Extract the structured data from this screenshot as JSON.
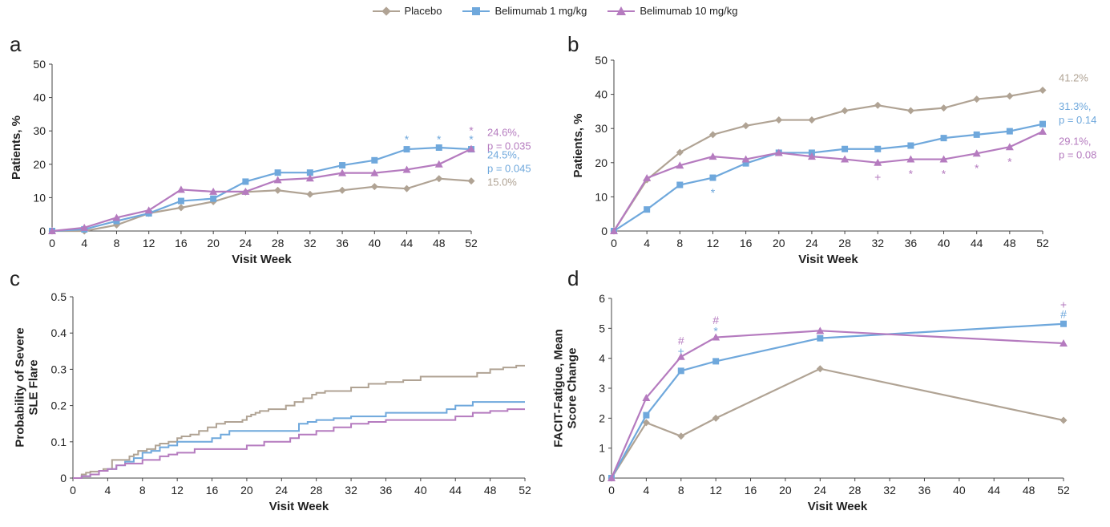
{
  "legend": [
    {
      "name": "Placebo",
      "color": "#b0a394",
      "marker": "diamond"
    },
    {
      "name": "Belimumab 1 mg/kg",
      "color": "#6fa8dc",
      "marker": "square"
    },
    {
      "name": "Belimumab 10 mg/kg",
      "color": "#b57bbf",
      "marker": "triangle"
    }
  ],
  "chart_data": [
    {
      "panel": "a",
      "type": "line",
      "title": "",
      "xlabel": "Visit Week",
      "ylabel": "Patients, %",
      "xlim": [
        0,
        52
      ],
      "ylim": [
        0,
        50
      ],
      "xticks": [
        0,
        4,
        8,
        12,
        16,
        20,
        24,
        28,
        32,
        36,
        40,
        44,
        48,
        52
      ],
      "yticks": [
        0,
        10,
        20,
        30,
        40,
        50
      ],
      "grid": false,
      "series": [
        {
          "name": "Placebo",
          "color": "#b0a394",
          "marker": "diamond",
          "x": [
            0,
            4,
            8,
            12,
            16,
            20,
            24,
            28,
            32,
            36,
            40,
            44,
            48,
            52
          ],
          "y": [
            0,
            0,
            1.8,
            5.3,
            7,
            8.8,
            11.7,
            12.2,
            11,
            12.2,
            13.3,
            12.7,
            15.7,
            15
          ]
        },
        {
          "name": "Belimumab 1 mg/kg",
          "color": "#6fa8dc",
          "marker": "square",
          "x": [
            0,
            4,
            8,
            12,
            16,
            20,
            24,
            28,
            32,
            36,
            40,
            44,
            48,
            52
          ],
          "y": [
            0,
            0.5,
            3,
            5.3,
            9,
            9.7,
            14.8,
            17.5,
            17.5,
            19.7,
            21.2,
            24.5,
            25,
            24.5
          ]
        },
        {
          "name": "Belimumab 10 mg/kg",
          "color": "#b57bbf",
          "marker": "triangle",
          "x": [
            0,
            4,
            8,
            12,
            16,
            20,
            24,
            28,
            32,
            36,
            40,
            44,
            48,
            52
          ],
          "y": [
            0,
            1,
            4,
            6.2,
            12.4,
            11.8,
            11.8,
            15.3,
            15.8,
            17.4,
            17.4,
            18.4,
            20,
            24.6
          ]
        }
      ],
      "end_labels": [
        {
          "lines": [
            "24.6%,",
            "p = 0.035"
          ],
          "color": "#b57bbf",
          "y": 28.5
        },
        {
          "lines": [
            "24.5%,",
            "p = 0.045"
          ],
          "color": "#6fa8dc",
          "y": 21.7
        },
        {
          "lines": [
            "15.0%"
          ],
          "color": "#b0a394",
          "y": 13.6
        }
      ],
      "annotations": [
        {
          "x": 44,
          "y": 27.5,
          "text": "*",
          "color": "#6fa8dc"
        },
        {
          "x": 48,
          "y": 27.5,
          "text": "*",
          "color": "#6fa8dc"
        },
        {
          "x": 52,
          "y": 30.2,
          "text": "*",
          "color": "#b57bbf"
        },
        {
          "x": 52,
          "y": 27.5,
          "text": "*",
          "color": "#6fa8dc"
        }
      ]
    },
    {
      "panel": "b",
      "type": "line",
      "title": "",
      "xlabel": "Visit Week",
      "ylabel": "Patients, %",
      "xlim": [
        0,
        52
      ],
      "ylim": [
        0,
        50
      ],
      "xticks": [
        0,
        4,
        8,
        12,
        16,
        20,
        24,
        28,
        32,
        36,
        40,
        44,
        48,
        52
      ],
      "yticks": [
        0,
        10,
        20,
        30,
        40,
        50
      ],
      "grid": false,
      "series": [
        {
          "name": "Placebo",
          "color": "#b0a394",
          "marker": "diamond",
          "x": [
            0,
            4,
            8,
            12,
            16,
            20,
            24,
            28,
            32,
            36,
            40,
            44,
            48,
            52
          ],
          "y": [
            0,
            15,
            23,
            28.2,
            30.8,
            32.5,
            32.5,
            35.2,
            36.8,
            35.2,
            36,
            38.6,
            39.5,
            41.2
          ]
        },
        {
          "name": "Belimumab 1 mg/kg",
          "color": "#6fa8dc",
          "marker": "square",
          "x": [
            0,
            4,
            8,
            12,
            16,
            20,
            24,
            28,
            32,
            36,
            40,
            44,
            48,
            52
          ],
          "y": [
            0,
            6.3,
            13.5,
            15.6,
            19.8,
            22.9,
            22.9,
            24,
            24,
            25,
            27.2,
            28.2,
            29.2,
            31.3
          ]
        },
        {
          "name": "Belimumab 10 mg/kg",
          "color": "#b57bbf",
          "marker": "triangle",
          "x": [
            0,
            4,
            8,
            12,
            16,
            20,
            24,
            28,
            32,
            36,
            40,
            44,
            48,
            52
          ],
          "y": [
            0,
            15.5,
            19.2,
            21.8,
            21,
            22.9,
            21.8,
            21,
            20,
            21,
            21,
            22.7,
            24.6,
            29.1
          ]
        }
      ],
      "end_labels": [
        {
          "lines": [
            "41.2%"
          ],
          "color": "#b0a394",
          "y": 43.8
        },
        {
          "lines": [
            "31.3%,",
            "p = 0.14"
          ],
          "color": "#6fa8dc",
          "y": 35.5
        },
        {
          "lines": [
            "29.1%,",
            "p = 0.08"
          ],
          "color": "#b57bbf",
          "y": 25.2
        }
      ],
      "annotations": [
        {
          "x": 12,
          "y": 11.3,
          "text": "*",
          "color": "#6fa8dc"
        },
        {
          "x": 32,
          "y": 15.8,
          "text": "+",
          "color": "#b57bbf"
        },
        {
          "x": 36,
          "y": 16.8,
          "text": "*",
          "color": "#b57bbf"
        },
        {
          "x": 40,
          "y": 16.8,
          "text": "*",
          "color": "#b57bbf"
        },
        {
          "x": 44,
          "y": 18.4,
          "text": "*",
          "color": "#b57bbf"
        },
        {
          "x": 48,
          "y": 20.3,
          "text": "*",
          "color": "#b57bbf"
        }
      ]
    },
    {
      "panel": "c",
      "type": "line",
      "step": true,
      "title": "",
      "xlabel": "Visit Week",
      "ylabel": "Probability of Severe SLE Flare",
      "ylabel_lines": [
        "Probability of Severe",
        "SLE Flare"
      ],
      "xlim": [
        0,
        52
      ],
      "ylim": [
        0,
        0.5
      ],
      "xticks": [
        0,
        4,
        8,
        12,
        16,
        20,
        24,
        28,
        32,
        36,
        40,
        44,
        48,
        52
      ],
      "yticks": [
        0,
        0.1,
        0.2,
        0.3,
        0.4,
        0.5
      ],
      "grid": false,
      "series": [
        {
          "name": "Placebo",
          "color": "#b0a394",
          "x": [
            0,
            1,
            1.5,
            2,
            3,
            3.5,
            4.5,
            5.5,
            6.5,
            7,
            7.5,
            8.5,
            9.5,
            10,
            11,
            12,
            12.5,
            13.5,
            14.5,
            15.5,
            16.5,
            17.5,
            19.5,
            20,
            20.5,
            21,
            21.5,
            22.5,
            24.5,
            25.5,
            26.5,
            27.5,
            28,
            29,
            30,
            32,
            34,
            36,
            38,
            40,
            43,
            45,
            46.5,
            48,
            49.5,
            51,
            52
          ],
          "y": [
            0,
            0.01,
            0.015,
            0.018,
            0.02,
            0.025,
            0.05,
            0.05,
            0.06,
            0.065,
            0.075,
            0.08,
            0.09,
            0.095,
            0.1,
            0.11,
            0.115,
            0.12,
            0.13,
            0.14,
            0.15,
            0.155,
            0.16,
            0.17,
            0.175,
            0.18,
            0.185,
            0.19,
            0.2,
            0.21,
            0.22,
            0.23,
            0.235,
            0.24,
            0.24,
            0.25,
            0.26,
            0.265,
            0.27,
            0.28,
            0.28,
            0.28,
            0.29,
            0.3,
            0.305,
            0.31,
            0.31
          ]
        },
        {
          "name": "Belimumab 1 mg/kg",
          "color": "#6fa8dc",
          "x": [
            0,
            1,
            2,
            3,
            4,
            5,
            6,
            7,
            8,
            9,
            10,
            11,
            12,
            14,
            16,
            17,
            18,
            20,
            22,
            24,
            26,
            27,
            28,
            30,
            32,
            34,
            36,
            38,
            41,
            43,
            44,
            46,
            48,
            52
          ],
          "y": [
            0,
            0.005,
            0.01,
            0.02,
            0.025,
            0.035,
            0.045,
            0.055,
            0.07,
            0.075,
            0.085,
            0.09,
            0.1,
            0.1,
            0.11,
            0.12,
            0.13,
            0.13,
            0.13,
            0.13,
            0.15,
            0.155,
            0.16,
            0.165,
            0.17,
            0.17,
            0.18,
            0.18,
            0.18,
            0.19,
            0.2,
            0.21,
            0.21,
            0.21
          ]
        },
        {
          "name": "Belimumab 10 mg/kg",
          "color": "#b57bbf",
          "x": [
            0,
            1,
            2,
            3,
            4,
            5,
            6,
            8,
            10,
            11,
            12,
            14,
            16,
            18,
            20,
            22,
            24,
            25,
            26,
            28,
            30,
            32,
            34,
            36,
            40,
            42,
            44,
            46,
            48,
            50,
            52
          ],
          "y": [
            0,
            0.005,
            0.01,
            0.02,
            0.025,
            0.035,
            0.04,
            0.05,
            0.06,
            0.065,
            0.07,
            0.08,
            0.08,
            0.08,
            0.09,
            0.1,
            0.1,
            0.11,
            0.12,
            0.13,
            0.14,
            0.15,
            0.155,
            0.16,
            0.16,
            0.16,
            0.17,
            0.18,
            0.185,
            0.19,
            0.19
          ]
        }
      ]
    },
    {
      "panel": "d",
      "type": "line",
      "title": "",
      "xlabel": "Visit Week",
      "ylabel": "FACIT-Fatigue, Mean Score Change",
      "ylabel_lines": [
        "FACIT-Fatigue, Mean",
        "Score Change"
      ],
      "xlim": [
        0,
        52
      ],
      "ylim": [
        0,
        6
      ],
      "xticks": [
        0,
        4,
        8,
        12,
        16,
        20,
        24,
        28,
        32,
        36,
        40,
        44,
        48,
        52
      ],
      "yticks": [
        0,
        1,
        2,
        3,
        4,
        5,
        6
      ],
      "grid": false,
      "series": [
        {
          "name": "Placebo",
          "color": "#b0a394",
          "marker": "diamond",
          "x": [
            0,
            4,
            8,
            12,
            24,
            52
          ],
          "y": [
            0,
            1.85,
            1.4,
            2,
            3.65,
            1.93
          ]
        },
        {
          "name": "Belimumab 1 mg/kg",
          "color": "#6fa8dc",
          "marker": "square",
          "x": [
            0,
            4,
            8,
            12,
            24,
            52
          ],
          "y": [
            0,
            2.1,
            3.58,
            3.9,
            4.67,
            5.15
          ]
        },
        {
          "name": "Belimumab 10 mg/kg",
          "color": "#b57bbf",
          "marker": "triangle",
          "x": [
            0,
            4,
            8,
            12,
            24,
            52
          ],
          "y": [
            0,
            2.68,
            4.05,
            4.7,
            4.92,
            4.5
          ]
        }
      ],
      "annotations": [
        {
          "x": 8,
          "y": 4.6,
          "text": "#",
          "color": "#b57bbf"
        },
        {
          "x": 8,
          "y": 4.25,
          "text": "+",
          "color": "#6fa8dc"
        },
        {
          "x": 12,
          "y": 5.28,
          "text": "#",
          "color": "#b57bbf"
        },
        {
          "x": 12,
          "y": 4.92,
          "text": "*",
          "color": "#6fa8dc"
        },
        {
          "x": 52,
          "y": 5.8,
          "text": "+",
          "color": "#b57bbf"
        },
        {
          "x": 52,
          "y": 5.48,
          "text": "#",
          "color": "#6fa8dc"
        }
      ]
    }
  ]
}
